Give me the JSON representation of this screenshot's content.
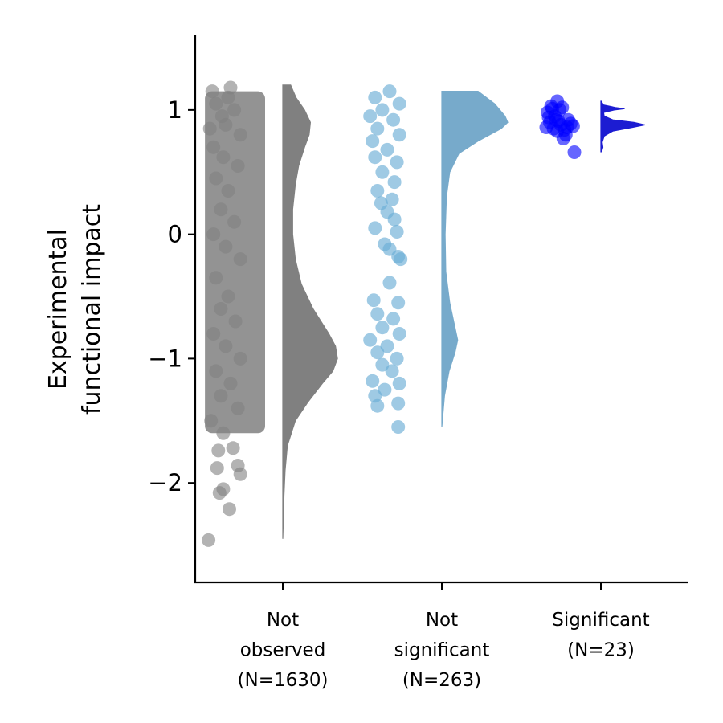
{
  "chart_data": {
    "type": "raincloud",
    "title": "",
    "ylabel": [
      "Experimental",
      "functional impact"
    ],
    "ylim": [
      -2.8,
      1.6
    ],
    "yticks": [
      {
        "value": 1,
        "label": "1"
      },
      {
        "value": 0,
        "label": "0"
      },
      {
        "value": -1,
        "label": "−1"
      },
      {
        "value": -2,
        "label": "−2"
      }
    ],
    "grid": false,
    "categories": [
      {
        "name": "not-observed",
        "label_lines": [
          "Not",
          "observed",
          "(N=1630)"
        ],
        "n": 1630,
        "color": "#808080",
        "point_color": "#808080",
        "point_opacity": 0.6,
        "range": [
          -2.45,
          1.2
        ],
        "density": [
          {
            "y": 1.2,
            "d": 0.12
          },
          {
            "y": 1.1,
            "d": 0.2
          },
          {
            "y": 1.0,
            "d": 0.33
          },
          {
            "y": 0.9,
            "d": 0.42
          },
          {
            "y": 0.8,
            "d": 0.4
          },
          {
            "y": 0.7,
            "d": 0.33
          },
          {
            "y": 0.55,
            "d": 0.24
          },
          {
            "y": 0.4,
            "d": 0.19
          },
          {
            "y": 0.2,
            "d": 0.15
          },
          {
            "y": 0.0,
            "d": 0.15
          },
          {
            "y": -0.2,
            "d": 0.19
          },
          {
            "y": -0.4,
            "d": 0.28
          },
          {
            "y": -0.6,
            "d": 0.46
          },
          {
            "y": -0.8,
            "d": 0.7
          },
          {
            "y": -0.9,
            "d": 0.8
          },
          {
            "y": -1.0,
            "d": 0.83
          },
          {
            "y": -1.1,
            "d": 0.76
          },
          {
            "y": -1.2,
            "d": 0.6
          },
          {
            "y": -1.35,
            "d": 0.38
          },
          {
            "y": -1.5,
            "d": 0.19
          },
          {
            "y": -1.7,
            "d": 0.07
          },
          {
            "y": -1.9,
            "d": 0.035
          },
          {
            "y": -2.1,
            "d": 0.018
          },
          {
            "y": -2.3,
            "d": 0.008
          },
          {
            "y": -2.45,
            "d": 0.0
          }
        ],
        "points": [
          [
            0.72,
            1.18
          ],
          [
            0.57,
            1.15
          ],
          [
            0.6,
            1.05
          ],
          [
            0.7,
            1.1
          ],
          [
            0.65,
            0.95
          ],
          [
            0.75,
            1.0
          ],
          [
            0.55,
            0.85
          ],
          [
            0.68,
            0.88
          ],
          [
            0.8,
            0.8
          ],
          [
            0.58,
            0.7
          ],
          [
            0.66,
            0.62
          ],
          [
            0.78,
            0.55
          ],
          [
            0.6,
            0.45
          ],
          [
            0.7,
            0.35
          ],
          [
            0.64,
            0.2
          ],
          [
            0.75,
            0.1
          ],
          [
            0.58,
            0.0
          ],
          [
            0.68,
            -0.1
          ],
          [
            0.8,
            -0.2
          ],
          [
            0.6,
            -0.35
          ],
          [
            0.7,
            -0.5
          ],
          [
            0.64,
            -0.6
          ],
          [
            0.76,
            -0.7
          ],
          [
            0.58,
            -0.8
          ],
          [
            0.68,
            -0.9
          ],
          [
            0.8,
            -1.0
          ],
          [
            0.6,
            -1.1
          ],
          [
            0.72,
            -1.2
          ],
          [
            0.64,
            -1.3
          ],
          [
            0.78,
            -1.4
          ],
          [
            0.56,
            -1.5
          ],
          [
            0.66,
            -1.6
          ],
          [
            0.74,
            -1.72
          ],
          [
            0.62,
            -1.74
          ],
          [
            0.78,
            -1.86
          ],
          [
            0.61,
            -1.88
          ],
          [
            0.8,
            -1.93
          ],
          [
            0.66,
            -2.05
          ],
          [
            0.63,
            -2.08
          ],
          [
            0.71,
            -2.21
          ],
          [
            0.54,
            -2.46
          ]
        ]
      },
      {
        "name": "not-significant",
        "label_lines": [
          "Not",
          "significant",
          "(N=263)"
        ],
        "n": 263,
        "color": "#77aacb",
        "point_color": "#6baed6",
        "point_opacity": 0.65,
        "range": [
          -1.55,
          1.15
        ],
        "density": [
          {
            "y": 1.15,
            "d": 0.55
          },
          {
            "y": 1.05,
            "d": 0.8
          },
          {
            "y": 0.95,
            "d": 0.96
          },
          {
            "y": 0.9,
            "d": 1.0
          },
          {
            "y": 0.85,
            "d": 0.9
          },
          {
            "y": 0.75,
            "d": 0.55
          },
          {
            "y": 0.65,
            "d": 0.26
          },
          {
            "y": 0.5,
            "d": 0.12
          },
          {
            "y": 0.3,
            "d": 0.07
          },
          {
            "y": 0.0,
            "d": 0.05
          },
          {
            "y": -0.3,
            "d": 0.06
          },
          {
            "y": -0.55,
            "d": 0.12
          },
          {
            "y": -0.75,
            "d": 0.2
          },
          {
            "y": -0.85,
            "d": 0.24
          },
          {
            "y": -0.95,
            "d": 0.2
          },
          {
            "y": -1.1,
            "d": 0.11
          },
          {
            "y": -1.3,
            "d": 0.04
          },
          {
            "y": -1.55,
            "d": 0.0
          }
        ],
        "points": [
          [
            0.72,
            1.15
          ],
          [
            0.6,
            1.1
          ],
          [
            0.8,
            1.05
          ],
          [
            0.66,
            1.0
          ],
          [
            0.56,
            0.95
          ],
          [
            0.75,
            0.92
          ],
          [
            0.62,
            0.85
          ],
          [
            0.8,
            0.8
          ],
          [
            0.58,
            0.75
          ],
          [
            0.7,
            0.68
          ],
          [
            0.6,
            0.62
          ],
          [
            0.78,
            0.58
          ],
          [
            0.66,
            0.5
          ],
          [
            0.76,
            0.42
          ],
          [
            0.62,
            0.35
          ],
          [
            0.74,
            0.28
          ],
          [
            0.65,
            0.25
          ],
          [
            0.7,
            0.18
          ],
          [
            0.76,
            0.12
          ],
          [
            0.6,
            0.05
          ],
          [
            0.78,
            0.02
          ],
          [
            0.68,
            -0.08
          ],
          [
            0.72,
            -0.12
          ],
          [
            0.79,
            -0.18
          ],
          [
            0.81,
            -0.2
          ],
          [
            0.72,
            -0.39
          ],
          [
            0.59,
            -0.53
          ],
          [
            0.79,
            -0.55
          ],
          [
            0.62,
            -0.64
          ],
          [
            0.75,
            -0.68
          ],
          [
            0.66,
            -0.75
          ],
          [
            0.8,
            -0.8
          ],
          [
            0.56,
            -0.85
          ],
          [
            0.7,
            -0.9
          ],
          [
            0.62,
            -0.95
          ],
          [
            0.78,
            -1.0
          ],
          [
            0.66,
            -1.05
          ],
          [
            0.74,
            -1.1
          ],
          [
            0.58,
            -1.18
          ],
          [
            0.8,
            -1.2
          ],
          [
            0.68,
            -1.25
          ],
          [
            0.6,
            -1.3
          ],
          [
            0.62,
            -1.38
          ],
          [
            0.79,
            -1.36
          ],
          [
            0.79,
            -1.55
          ]
        ]
      },
      {
        "name": "significant",
        "label_lines": [
          "Significant",
          "(N=23)"
        ],
        "n": 23,
        "color": "#1c1cd2",
        "point_color": "#0000ff",
        "point_opacity": 0.6,
        "range": [
          0.66,
          1.07
        ],
        "density": [
          {
            "y": 1.07,
            "d": 0.005
          },
          {
            "y": 1.04,
            "d": 0.04
          },
          {
            "y": 1.02,
            "d": 0.22
          },
          {
            "y": 1.01,
            "d": 0.36
          },
          {
            "y": 1.0,
            "d": 0.2
          },
          {
            "y": 0.98,
            "d": 0.04
          },
          {
            "y": 0.95,
            "d": 0.05
          },
          {
            "y": 0.92,
            "d": 0.18
          },
          {
            "y": 0.9,
            "d": 0.5
          },
          {
            "y": 0.88,
            "d": 0.67
          },
          {
            "y": 0.86,
            "d": 0.48
          },
          {
            "y": 0.83,
            "d": 0.18
          },
          {
            "y": 0.79,
            "d": 0.05
          },
          {
            "y": 0.74,
            "d": 0.02
          },
          {
            "y": 0.7,
            "d": 0.03
          },
          {
            "y": 0.68,
            "d": 0.02
          },
          {
            "y": 0.66,
            "d": 0.0
          }
        ],
        "points": [
          [
            0.79,
            1.07
          ],
          [
            0.74,
            1.03
          ],
          [
            0.83,
            1.02
          ],
          [
            0.71,
            0.98
          ],
          [
            0.77,
            0.95
          ],
          [
            0.88,
            0.92
          ],
          [
            0.73,
            0.9
          ],
          [
            0.82,
            0.88
          ],
          [
            0.92,
            0.87
          ],
          [
            0.76,
            0.85
          ],
          [
            0.85,
            0.84
          ],
          [
            0.7,
            0.86
          ],
          [
            0.79,
            0.83
          ],
          [
            0.9,
            0.89
          ],
          [
            0.78,
            0.92
          ],
          [
            0.86,
            0.8
          ],
          [
            0.84,
            0.77
          ],
          [
            0.93,
            0.66
          ],
          [
            0.81,
            1.0
          ],
          [
            0.75,
            1.01
          ],
          [
            0.8,
            0.91
          ],
          [
            0.87,
            0.86
          ],
          [
            0.72,
            0.94
          ]
        ]
      }
    ]
  }
}
